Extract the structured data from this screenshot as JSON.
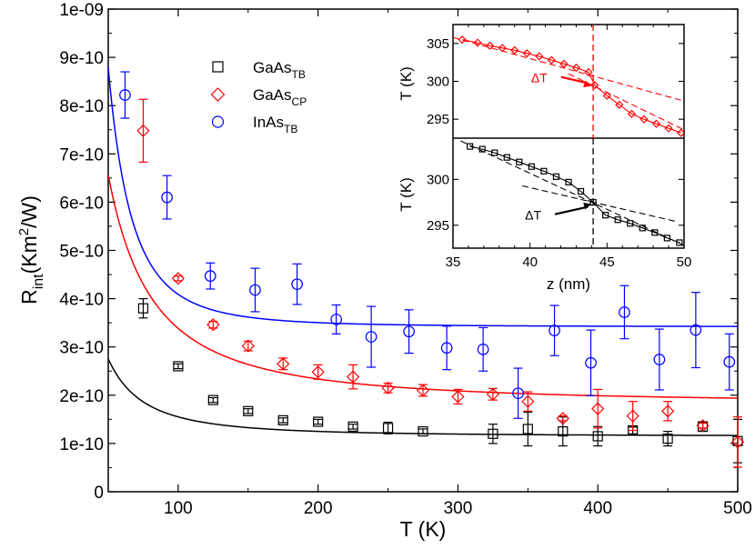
{
  "chart_data": [
    {
      "type": "scatter",
      "title": "",
      "xlabel": "T (K)",
      "ylabel_main": "R",
      "ylabel_sub": "int",
      "ylabel_pre": "(Km",
      "ylabel_sup": "2",
      "ylabel_post": "/W)",
      "xlim": [
        50,
        500
      ],
      "ylim": [
        0,
        1e-09
      ],
      "xticks": [
        100,
        200,
        300,
        400,
        500
      ],
      "yticks": [
        0,
        1e-10,
        2e-10,
        3e-10,
        4e-10,
        5e-10,
        6e-10,
        7e-10,
        8e-10,
        9e-10,
        1e-09
      ],
      "xtick_labels": [
        "100",
        "200",
        "300",
        "400",
        "500"
      ],
      "ytick_labels": [
        "0",
        "1e-10",
        "2e-10",
        "3e-10",
        "4e-10",
        "5e-10",
        "6e-10",
        "7e-10",
        "8e-10",
        "9e-10",
        "1e-09"
      ],
      "legend_position": "top-left-center",
      "series": [
        {
          "name": "GaAs_TB",
          "label_main": "GaAs",
          "label_sub": "TB",
          "color": "#000000",
          "marker": "square",
          "points": [
            {
              "x": 75,
              "y": 3.8e-10,
              "err": 2e-11
            },
            {
              "x": 100,
              "y": 2.6e-10,
              "err": 5e-12
            },
            {
              "x": 125,
              "y": 1.9e-10,
              "err": 5e-12
            },
            {
              "x": 150,
              "y": 1.67e-10,
              "err": 5e-12
            },
            {
              "x": 175,
              "y": 1.48e-10,
              "err": 5e-12
            },
            {
              "x": 200,
              "y": 1.45e-10,
              "err": 5e-12
            },
            {
              "x": 225,
              "y": 1.35e-10,
              "err": 5e-12
            },
            {
              "x": 250,
              "y": 1.32e-10,
              "err": 1.2e-11
            },
            {
              "x": 275,
              "y": 1.25e-10,
              "err": 5e-12
            },
            {
              "x": 325,
              "y": 1.2e-10,
              "err": 2e-11
            },
            {
              "x": 350,
              "y": 1.3e-10,
              "err": 3.5e-11
            },
            {
              "x": 375,
              "y": 1.25e-10,
              "err": 3e-11
            },
            {
              "x": 400,
              "y": 1.15e-10,
              "err": 2e-11
            },
            {
              "x": 425,
              "y": 1.27e-10,
              "err": 7e-12
            },
            {
              "x": 450,
              "y": 1.1e-10,
              "err": 1.5e-11
            },
            {
              "x": 475,
              "y": 1.35e-10,
              "err": 1e-11
            },
            {
              "x": 500,
              "y": 1.05e-10,
              "err": 4.5e-11
            }
          ],
          "fit": {
            "a": 4.01e-07,
            "b": 1.15e-10,
            "n": 2
          }
        },
        {
          "name": "GaAs_CP",
          "label_main": "GaAs",
          "label_sub": "CP",
          "color": "#ff0000",
          "marker": "diamond",
          "points": [
            {
              "x": 75,
              "y": 7.48e-10,
              "err": 6.5e-11
            },
            {
              "x": 100,
              "y": 4.42e-10,
              "err": 5e-12
            },
            {
              "x": 125,
              "y": 3.46e-10,
              "err": 7e-12
            },
            {
              "x": 150,
              "y": 3.02e-10,
              "err": 1e-11
            },
            {
              "x": 175,
              "y": 2.65e-10,
              "err": 1.2e-11
            },
            {
              "x": 200,
              "y": 2.48e-10,
              "err": 1.5e-11
            },
            {
              "x": 225,
              "y": 2.38e-10,
              "err": 2.5e-11
            },
            {
              "x": 250,
              "y": 2.15e-10,
              "err": 1e-11
            },
            {
              "x": 275,
              "y": 2.1e-10,
              "err": 1.2e-11
            },
            {
              "x": 300,
              "y": 1.97e-10,
              "err": 1.5e-11
            },
            {
              "x": 325,
              "y": 2.02e-10,
              "err": 1.2e-11
            },
            {
              "x": 350,
              "y": 1.87e-10,
              "err": 2e-11
            },
            {
              "x": 375,
              "y": 1.52e-10,
              "err": 5e-12
            },
            {
              "x": 400,
              "y": 1.72e-10,
              "err": 4e-11
            },
            {
              "x": 425,
              "y": 1.57e-10,
              "err": 3e-11
            },
            {
              "x": 450,
              "y": 1.67e-10,
              "err": 2e-11
            },
            {
              "x": 475,
              "y": 1.37e-10,
              "err": 5e-12
            },
            {
              "x": 500,
              "y": 1.03e-10,
              "err": 5.2e-11
            }
          ],
          "fit": {
            "a": 2.48e-07,
            "b": 1.82e-10,
            "n": 1.6
          }
        },
        {
          "name": "InAs_TB",
          "label_main": "InAs",
          "label_sub": "TB",
          "color": "#0000ff",
          "marker": "circle",
          "points": [
            {
              "x": 62,
              "y": 8.22e-10,
              "err": 4.8e-11
            },
            {
              "x": 92,
              "y": 6.1e-10,
              "err": 4.5e-11
            },
            {
              "x": 123,
              "y": 4.47e-10,
              "err": 2.7e-11
            },
            {
              "x": 155,
              "y": 4.18e-10,
              "err": 4.5e-11
            },
            {
              "x": 185,
              "y": 4.3e-10,
              "err": 4.2e-11
            },
            {
              "x": 213,
              "y": 3.57e-10,
              "err": 3e-11
            },
            {
              "x": 238,
              "y": 3.21e-10,
              "err": 6.3e-11
            },
            {
              "x": 265,
              "y": 3.32e-10,
              "err": 4.5e-11
            },
            {
              "x": 292,
              "y": 2.98e-10,
              "err": 4.5e-11
            },
            {
              "x": 318,
              "y": 2.95e-10,
              "err": 4.5e-11
            },
            {
              "x": 343,
              "y": 2.04e-10,
              "err": 5.2e-11
            },
            {
              "x": 369,
              "y": 3.34e-10,
              "err": 5.2e-11
            },
            {
              "x": 395,
              "y": 2.67e-10,
              "err": 6.8e-11
            },
            {
              "x": 419,
              "y": 3.72e-10,
              "err": 5.5e-11
            },
            {
              "x": 444,
              "y": 2.74e-10,
              "err": 6.3e-11
            },
            {
              "x": 470,
              "y": 3.35e-10,
              "err": 7.8e-11
            },
            {
              "x": 494,
              "y": 2.69e-10,
              "err": 5.8e-11
            }
          ],
          "fit": {
            "a": 6.7e-05,
            "b": 3.42e-10,
            "n": 3
          }
        }
      ]
    },
    {
      "type": "line",
      "title": "inset (top)",
      "xlabel": "",
      "ylabel": "T (K)",
      "xlim": [
        35,
        50
      ],
      "ylim": [
        292.5,
        307.5
      ],
      "yticks": [
        295,
        300,
        305
      ],
      "ytick_labels": [
        "295",
        "300",
        "305"
      ],
      "color": "#ff0000",
      "marker": "diamond",
      "points": [
        {
          "x": 35.6,
          "y": 305.5
        },
        {
          "x": 36.6,
          "y": 305.1
        },
        {
          "x": 37.4,
          "y": 304.7
        },
        {
          "x": 38.2,
          "y": 304.4
        },
        {
          "x": 39.0,
          "y": 304.1
        },
        {
          "x": 39.8,
          "y": 303.7
        },
        {
          "x": 40.6,
          "y": 303.3
        },
        {
          "x": 41.4,
          "y": 302.8
        },
        {
          "x": 42.2,
          "y": 302.3
        },
        {
          "x": 43.0,
          "y": 301.8
        },
        {
          "x": 43.8,
          "y": 301.2
        },
        {
          "x": 44.2,
          "y": 299.5
        },
        {
          "x": 45.0,
          "y": 298.1
        },
        {
          "x": 45.8,
          "y": 296.9
        },
        {
          "x": 46.6,
          "y": 295.7
        },
        {
          "x": 47.4,
          "y": 295.0
        },
        {
          "x": 48.2,
          "y": 294.4
        },
        {
          "x": 49.0,
          "y": 293.8
        },
        {
          "x": 49.8,
          "y": 293.2
        }
      ],
      "dashed_lines": [
        {
          "x1": 35,
          "y1": 305.8,
          "x2": 50,
          "y2": 297.4
        },
        {
          "x1": 42.5,
          "y1": 301.0,
          "x2": 50,
          "y2": 293.6
        }
      ],
      "vertical_line_x": 44.1,
      "annotation": "ΔT"
    },
    {
      "type": "line",
      "title": "inset (bottom)",
      "xlabel": "z (nm)",
      "ylabel": "T (K)",
      "xlim": [
        35,
        50
      ],
      "ylim": [
        292.5,
        304.5
      ],
      "xticks": [
        35,
        40,
        45,
        50
      ],
      "xtick_labels": [
        "35",
        "40",
        "45",
        "50"
      ],
      "yticks": [
        295,
        300
      ],
      "ytick_labels": [
        "295",
        "300"
      ],
      "color": "#000000",
      "marker": "square",
      "points": [
        {
          "x": 36.1,
          "y": 303.6
        },
        {
          "x": 36.9,
          "y": 303.3
        },
        {
          "x": 37.7,
          "y": 302.9
        },
        {
          "x": 38.5,
          "y": 302.4
        },
        {
          "x": 39.3,
          "y": 301.9
        },
        {
          "x": 40.1,
          "y": 301.4
        },
        {
          "x": 40.9,
          "y": 300.9
        },
        {
          "x": 41.7,
          "y": 300.3
        },
        {
          "x": 42.5,
          "y": 299.7
        },
        {
          "x": 43.3,
          "y": 298.7
        },
        {
          "x": 44.1,
          "y": 297.5
        },
        {
          "x": 44.9,
          "y": 296.1
        },
        {
          "x": 45.7,
          "y": 295.6
        },
        {
          "x": 46.5,
          "y": 295.2
        },
        {
          "x": 47.3,
          "y": 294.7
        },
        {
          "x": 48.1,
          "y": 294.2
        },
        {
          "x": 48.9,
          "y": 293.6
        },
        {
          "x": 49.7,
          "y": 293.1
        }
      ],
      "dashed_lines": [
        {
          "x1": 35.5,
          "y1": 304.2,
          "x2": 50,
          "y2": 292.8
        },
        {
          "x1": 39.5,
          "y1": 299.3,
          "x2": 49.5,
          "y2": 295.4
        }
      ],
      "vertical_line_x": 44.1,
      "annotation": "ΔT"
    }
  ]
}
